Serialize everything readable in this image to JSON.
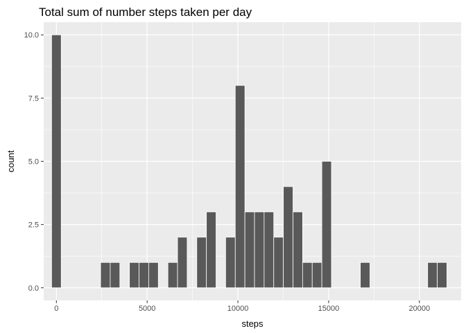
{
  "chart_data": {
    "type": "bar",
    "title": "Total sum of number steps taken per day",
    "xlabel": "steps",
    "ylabel": "count",
    "bin_width": 530,
    "xlim": [
      -700,
      22300
    ],
    "ylim": [
      -0.5,
      10.5
    ],
    "x_ticks": [
      0,
      5000,
      10000,
      15000,
      20000
    ],
    "x_tick_labels": [
      "0",
      "5000",
      "10000",
      "15000",
      "20000"
    ],
    "x_minor_ticks": [
      2500,
      7500,
      12500,
      17500
    ],
    "y_ticks": [
      0,
      2.5,
      5,
      7.5,
      10
    ],
    "y_tick_labels": [
      "0.0",
      "2.5",
      "5.0",
      "7.5",
      "10.0"
    ],
    "y_minor_ticks": [
      1.25,
      3.75,
      6.25,
      8.75
    ],
    "bins": [
      {
        "x": 0,
        "count": 10
      },
      {
        "x": 2700,
        "count": 1
      },
      {
        "x": 3230,
        "count": 1
      },
      {
        "x": 4290,
        "count": 1
      },
      {
        "x": 4820,
        "count": 1
      },
      {
        "x": 5350,
        "count": 1
      },
      {
        "x": 6410,
        "count": 1
      },
      {
        "x": 6940,
        "count": 2
      },
      {
        "x": 8000,
        "count": 2
      },
      {
        "x": 8530,
        "count": 3
      },
      {
        "x": 9590,
        "count": 2
      },
      {
        "x": 10120,
        "count": 8
      },
      {
        "x": 10650,
        "count": 3
      },
      {
        "x": 11180,
        "count": 3
      },
      {
        "x": 11710,
        "count": 3
      },
      {
        "x": 12240,
        "count": 2
      },
      {
        "x": 12770,
        "count": 4
      },
      {
        "x": 13300,
        "count": 3
      },
      {
        "x": 13830,
        "count": 1
      },
      {
        "x": 14360,
        "count": 1
      },
      {
        "x": 14890,
        "count": 5
      },
      {
        "x": 17010,
        "count": 1
      },
      {
        "x": 20720,
        "count": 1
      },
      {
        "x": 21250,
        "count": 1
      }
    ],
    "panel_background": "#ebebeb",
    "grid_major_color": "#ffffff",
    "bar_fill": "#595959",
    "bar_outline": "#ffffff",
    "grid": true,
    "legend": "none"
  }
}
